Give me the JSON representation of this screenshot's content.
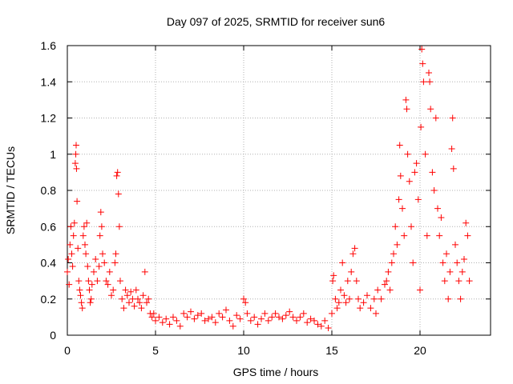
{
  "chart_data": {
    "type": "scatter",
    "title": "Day 097 of 2025, SRMTID for receiver sun6",
    "xlabel": "GPS time / hours",
    "ylabel": "SRMTID / TECUs",
    "xlim": [
      0,
      24
    ],
    "ylim": [
      0,
      1.6
    ],
    "xticks": [
      0,
      5,
      10,
      15,
      20
    ],
    "yticks": [
      0,
      0.2,
      0.4,
      0.6,
      0.8,
      1,
      1.2,
      1.4,
      1.6
    ],
    "ytick_labels": [
      "0",
      "0.2",
      "0.4",
      "0.6",
      "0.8",
      "1",
      "1.2",
      "1.4",
      "1.6"
    ],
    "grid": true,
    "marker": "+",
    "color": "#ff0000",
    "series": [
      {
        "name": "SRMTID",
        "points": [
          [
            0.0,
            0.35
          ],
          [
            0.05,
            0.42
          ],
          [
            0.1,
            0.28
          ],
          [
            0.15,
            0.5
          ],
          [
            0.2,
            0.6
          ],
          [
            0.25,
            0.45
          ],
          [
            0.3,
            0.38
          ],
          [
            0.35,
            0.55
          ],
          [
            0.4,
            0.62
          ],
          [
            0.45,
            0.95
          ],
          [
            0.48,
            1.0
          ],
          [
            0.5,
            1.05
          ],
          [
            0.52,
            0.92
          ],
          [
            0.55,
            0.74
          ],
          [
            0.6,
            0.48
          ],
          [
            0.65,
            0.3
          ],
          [
            0.7,
            0.25
          ],
          [
            0.75,
            0.22
          ],
          [
            0.8,
            0.18
          ],
          [
            0.85,
            0.15
          ],
          [
            0.9,
            0.55
          ],
          [
            0.95,
            0.6
          ],
          [
            1.0,
            0.5
          ],
          [
            1.05,
            0.45
          ],
          [
            1.1,
            0.62
          ],
          [
            1.15,
            0.38
          ],
          [
            1.2,
            0.3
          ],
          [
            1.25,
            0.25
          ],
          [
            1.3,
            0.18
          ],
          [
            1.35,
            0.2
          ],
          [
            1.4,
            0.28
          ],
          [
            1.5,
            0.35
          ],
          [
            1.6,
            0.42
          ],
          [
            1.7,
            0.3
          ],
          [
            1.8,
            0.38
          ],
          [
            1.85,
            0.55
          ],
          [
            1.9,
            0.68
          ],
          [
            1.95,
            0.6
          ],
          [
            2.0,
            0.45
          ],
          [
            2.1,
            0.4
          ],
          [
            2.2,
            0.3
          ],
          [
            2.3,
            0.28
          ],
          [
            2.4,
            0.35
          ],
          [
            2.5,
            0.22
          ],
          [
            2.6,
            0.25
          ],
          [
            2.7,
            0.4
          ],
          [
            2.75,
            0.45
          ],
          [
            2.8,
            0.88
          ],
          [
            2.85,
            0.9
          ],
          [
            2.9,
            0.78
          ],
          [
            2.95,
            0.6
          ],
          [
            3.0,
            0.3
          ],
          [
            3.1,
            0.2
          ],
          [
            3.2,
            0.15
          ],
          [
            3.3,
            0.25
          ],
          [
            3.4,
            0.22
          ],
          [
            3.5,
            0.18
          ],
          [
            3.6,
            0.24
          ],
          [
            3.7,
            0.2
          ],
          [
            3.8,
            0.16
          ],
          [
            3.9,
            0.25
          ],
          [
            4.0,
            0.2
          ],
          [
            4.1,
            0.18
          ],
          [
            4.2,
            0.15
          ],
          [
            4.3,
            0.22
          ],
          [
            4.4,
            0.35
          ],
          [
            4.5,
            0.18
          ],
          [
            4.6,
            0.2
          ],
          [
            4.7,
            0.12
          ],
          [
            4.8,
            0.1
          ],
          [
            4.9,
            0.12
          ],
          [
            5.0,
            0.08
          ],
          [
            5.2,
            0.1
          ],
          [
            5.4,
            0.07
          ],
          [
            5.6,
            0.09
          ],
          [
            5.8,
            0.06
          ],
          [
            6.0,
            0.1
          ],
          [
            6.2,
            0.08
          ],
          [
            6.4,
            0.05
          ],
          [
            6.6,
            0.12
          ],
          [
            6.8,
            0.1
          ],
          [
            7.0,
            0.13
          ],
          [
            7.2,
            0.09
          ],
          [
            7.4,
            0.11
          ],
          [
            7.6,
            0.12
          ],
          [
            7.8,
            0.08
          ],
          [
            8.0,
            0.09
          ],
          [
            8.2,
            0.1
          ],
          [
            8.4,
            0.07
          ],
          [
            8.6,
            0.12
          ],
          [
            8.8,
            0.1
          ],
          [
            9.0,
            0.14
          ],
          [
            9.2,
            0.08
          ],
          [
            9.4,
            0.05
          ],
          [
            9.6,
            0.11
          ],
          [
            9.8,
            0.09
          ],
          [
            10.0,
            0.2
          ],
          [
            10.1,
            0.18
          ],
          [
            10.2,
            0.12
          ],
          [
            10.4,
            0.08
          ],
          [
            10.6,
            0.1
          ],
          [
            10.8,
            0.06
          ],
          [
            11.0,
            0.09
          ],
          [
            11.2,
            0.12
          ],
          [
            11.4,
            0.08
          ],
          [
            11.6,
            0.1
          ],
          [
            11.8,
            0.12
          ],
          [
            12.0,
            0.1
          ],
          [
            12.2,
            0.09
          ],
          [
            12.4,
            0.11
          ],
          [
            12.6,
            0.13
          ],
          [
            12.8,
            0.1
          ],
          [
            13.0,
            0.08
          ],
          [
            13.2,
            0.1
          ],
          [
            13.4,
            0.12
          ],
          [
            13.6,
            0.07
          ],
          [
            13.8,
            0.09
          ],
          [
            14.0,
            0.08
          ],
          [
            14.2,
            0.06
          ],
          [
            14.4,
            0.05
          ],
          [
            14.6,
            0.08
          ],
          [
            14.8,
            0.04
          ],
          [
            15.0,
            0.12
          ],
          [
            15.05,
            0.3
          ],
          [
            15.1,
            0.33
          ],
          [
            15.2,
            0.2
          ],
          [
            15.3,
            0.15
          ],
          [
            15.4,
            0.18
          ],
          [
            15.5,
            0.25
          ],
          [
            15.6,
            0.4
          ],
          [
            15.7,
            0.22
          ],
          [
            15.8,
            0.18
          ],
          [
            15.9,
            0.3
          ],
          [
            16.0,
            0.2
          ],
          [
            16.1,
            0.35
          ],
          [
            16.2,
            0.45
          ],
          [
            16.3,
            0.48
          ],
          [
            16.4,
            0.3
          ],
          [
            16.5,
            0.2
          ],
          [
            16.6,
            0.15
          ],
          [
            16.8,
            0.18
          ],
          [
            17.0,
            0.22
          ],
          [
            17.2,
            0.15
          ],
          [
            17.4,
            0.2
          ],
          [
            17.5,
            0.12
          ],
          [
            17.6,
            0.25
          ],
          [
            17.8,
            0.2
          ],
          [
            18.0,
            0.28
          ],
          [
            18.1,
            0.3
          ],
          [
            18.2,
            0.35
          ],
          [
            18.3,
            0.25
          ],
          [
            18.4,
            0.4
          ],
          [
            18.5,
            0.45
          ],
          [
            18.6,
            0.6
          ],
          [
            18.7,
            0.5
          ],
          [
            18.8,
            0.75
          ],
          [
            18.85,
            1.05
          ],
          [
            18.9,
            0.88
          ],
          [
            19.0,
            0.7
          ],
          [
            19.1,
            0.55
          ],
          [
            19.2,
            1.3
          ],
          [
            19.25,
            1.25
          ],
          [
            19.3,
            1.0
          ],
          [
            19.4,
            0.85
          ],
          [
            19.5,
            0.6
          ],
          [
            19.6,
            0.4
          ],
          [
            19.7,
            0.9
          ],
          [
            19.8,
            0.95
          ],
          [
            19.9,
            0.75
          ],
          [
            20.0,
            0.25
          ],
          [
            20.05,
            1.15
          ],
          [
            20.1,
            1.58
          ],
          [
            20.15,
            1.5
          ],
          [
            20.2,
            1.4
          ],
          [
            20.3,
            1.0
          ],
          [
            20.4,
            0.55
          ],
          [
            20.5,
            1.45
          ],
          [
            20.55,
            1.4
          ],
          [
            20.6,
            1.25
          ],
          [
            20.7,
            0.9
          ],
          [
            20.8,
            0.8
          ],
          [
            20.9,
            1.2
          ],
          [
            21.0,
            0.7
          ],
          [
            21.1,
            0.55
          ],
          [
            21.2,
            0.65
          ],
          [
            21.3,
            0.4
          ],
          [
            21.4,
            0.3
          ],
          [
            21.5,
            0.45
          ],
          [
            21.6,
            0.2
          ],
          [
            21.7,
            0.35
          ],
          [
            21.8,
            1.03
          ],
          [
            21.85,
            1.2
          ],
          [
            21.9,
            0.92
          ],
          [
            22.0,
            0.5
          ],
          [
            22.1,
            0.4
          ],
          [
            22.2,
            0.3
          ],
          [
            22.3,
            0.2
          ],
          [
            22.4,
            0.35
          ],
          [
            22.5,
            0.42
          ],
          [
            22.6,
            0.62
          ],
          [
            22.7,
            0.55
          ],
          [
            22.8,
            0.3
          ]
        ]
      }
    ]
  }
}
